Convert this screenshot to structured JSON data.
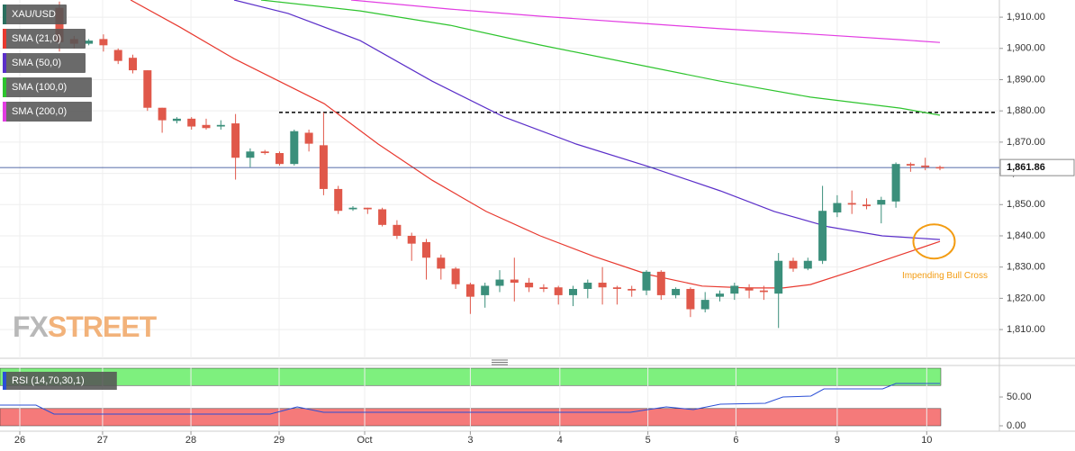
{
  "chart_data": {
    "type": "candlestick",
    "candles": {
      "name": "XAU/USD",
      "up_color": "#3b8f7b",
      "down_color": "#e0584a",
      "x": [
        0,
        1,
        2,
        3,
        4,
        5,
        6,
        7,
        8,
        9,
        10,
        11,
        12,
        13,
        14,
        15,
        16,
        17,
        18,
        19,
        20,
        21,
        22,
        23,
        24,
        25,
        26,
        27,
        28,
        29,
        30,
        31,
        32,
        33,
        34,
        35,
        36,
        37,
        38,
        39,
        40,
        41,
        42,
        43,
        44,
        45,
        46,
        47,
        48,
        49,
        50,
        51,
        52,
        53,
        54,
        55,
        56,
        57,
        58,
        59,
        60
      ],
      "open": [
        1913,
        1903,
        1901.5,
        1903,
        1899.5,
        1897,
        1893,
        1881,
        1876.8,
        1877.5,
        1875.5,
        1875,
        1876,
        1865,
        1867,
        1866.5,
        1863,
        1873,
        1869,
        1855,
        1848.5,
        1849,
        1848.5,
        1843.5,
        1840,
        1838,
        1833,
        1829.5,
        1824.5,
        1821,
        1824,
        1826,
        1825,
        1823.5,
        1823.5,
        1821,
        1823,
        1825,
        1823.5,
        1823,
        1822.5,
        1828.5,
        1821,
        1823,
        1816.5,
        1820.5,
        1821.5,
        1823.5,
        1822.5,
        1821.5,
        1832,
        1829.5,
        1832,
        1847.5,
        1850.5,
        1850,
        1850,
        1851,
        1863,
        1862.5,
        1862
      ],
      "high": [
        1915,
        1904,
        1903,
        1904.5,
        1900,
        1898,
        1893,
        1881,
        1878,
        1878,
        1877.5,
        1877,
        1879,
        1868,
        1867.5,
        1867,
        1874,
        1874,
        1879.5,
        1856,
        1849.5,
        1849,
        1849,
        1845,
        1841,
        1839,
        1834,
        1830,
        1825,
        1825,
        1829,
        1833,
        1826.5,
        1824.5,
        1824,
        1824,
        1826,
        1830,
        1824,
        1824,
        1829,
        1829,
        1823.5,
        1823.5,
        1822,
        1822.5,
        1825,
        1824.5,
        1824,
        1834.5,
        1833,
        1833,
        1856,
        1853,
        1854.5,
        1852,
        1852.5,
        1863.5,
        1863.5,
        1865,
        1862.5
      ],
      "low": [
        1899,
        1900,
        1901,
        1899,
        1895,
        1892,
        1880,
        1873,
        1876,
        1874,
        1874,
        1874,
        1858,
        1862,
        1866,
        1862.5,
        1862.5,
        1867,
        1853,
        1847,
        1848,
        1847,
        1843,
        1839,
        1832,
        1826,
        1826,
        1823,
        1815,
        1817,
        1822,
        1819,
        1822,
        1822,
        1818,
        1817.5,
        1820,
        1818,
        1818,
        1820.5,
        1821,
        1819.5,
        1820,
        1814,
        1815.5,
        1819,
        1819.5,
        1820,
        1819.5,
        1810.5,
        1828.5,
        1829,
        1831,
        1846,
        1847,
        1848.5,
        1844,
        1849,
        1860.5,
        1861,
        1861
      ],
      "close": [
        1902,
        1901.5,
        1902.5,
        1901,
        1896,
        1893,
        1881,
        1877,
        1877.5,
        1875,
        1874.5,
        1875.5,
        1865,
        1867,
        1866.5,
        1863,
        1873.5,
        1869.5,
        1855,
        1848,
        1849,
        1848.5,
        1843.5,
        1840,
        1837.5,
        1833,
        1829.5,
        1824.5,
        1820.5,
        1824,
        1826,
        1825,
        1823.5,
        1823,
        1821,
        1823,
        1825,
        1823.5,
        1823,
        1822.5,
        1828.5,
        1821,
        1823,
        1816.5,
        1819.5,
        1821.5,
        1824,
        1822.5,
        1822,
        1832,
        1829.5,
        1832,
        1848,
        1850.5,
        1850,
        1849.5,
        1851.5,
        1863,
        1862.5,
        1862,
        1861.86
      ]
    },
    "series": [
      {
        "name": "SMA (21,0)",
        "color": "#e8392f",
        "x": [
          4.85,
          8.22,
          11.9,
          14.97,
          18.04,
          21.72,
          25.4,
          29.08,
          32.76,
          36.44,
          40.12,
          43.8,
          46.87,
          49.3,
          51.17,
          54.23,
          57.3,
          60
        ],
        "values": [
          1915.5,
          1906.8,
          1896.7,
          1889.5,
          1882.3,
          1869.4,
          1857.8,
          1847.8,
          1840,
          1833.4,
          1827.6,
          1823.9,
          1823.3,
          1823.3,
          1824.4,
          1829,
          1833.9,
          1838.2
        ]
      },
      {
        "name": "SMA (50,0)",
        "color": "#5b2fc9",
        "x": [
          11.9,
          15.58,
          20.49,
          25.4,
          30.31,
          35.21,
          40.12,
          45.03,
          48.71,
          52.39,
          56.07,
          60
        ],
        "values": [
          1915.5,
          1911.2,
          1902.5,
          1889.5,
          1878,
          1869.4,
          1862.2,
          1854.4,
          1847.8,
          1842.9,
          1840,
          1838.8
        ]
      },
      {
        "name": "SMA (100,0)",
        "color": "#2ec42e",
        "x": [
          13.74,
          20.49,
          26.63,
          32.76,
          38.9,
          45.03,
          51.17,
          57.3,
          60
        ],
        "values": [
          1915.5,
          1912,
          1907.4,
          1901.1,
          1895.3,
          1889.5,
          1884.4,
          1880.9,
          1878.6
        ]
      },
      {
        "name": "SMA (200,0)",
        "color": "#e23de2",
        "x": [
          19.88,
          26.63,
          32.76,
          38.9,
          45.03,
          51.17,
          57.3,
          60
        ],
        "values": [
          1915.5,
          1912.6,
          1910.3,
          1908.3,
          1906.3,
          1904.6,
          1902.8,
          1901.9
        ]
      }
    ],
    "last_price": {
      "value": 1861.86,
      "label": "1,861.86",
      "color": "#1f3b8c"
    },
    "level_line": {
      "value": 1879.5,
      "x": [
        14.97,
        63.75
      ],
      "color": "#000000"
    },
    "annotation": {
      "text": "Impending Bull Cross",
      "x": 59.6,
      "y": 1838.2,
      "color": "#f39c12"
    },
    "watermark": [
      "FX",
      "STREET"
    ],
    "xlim": [
      -4.05,
      64.05
    ],
    "xticks": [
      {
        "value": -2.7,
        "label": "26"
      },
      {
        "value": 2.94,
        "label": "27"
      },
      {
        "value": 8.96,
        "label": "28"
      },
      {
        "value": 14.97,
        "label": "29"
      },
      {
        "value": 20.8,
        "label": "Oct"
      },
      {
        "value": 28.0,
        "label": "3"
      },
      {
        "value": 34.1,
        "label": "4"
      },
      {
        "value": 40.1,
        "label": "5"
      },
      {
        "value": 46.1,
        "label": "6"
      },
      {
        "value": 53.0,
        "label": "9"
      },
      {
        "value": 59.1,
        "label": "10"
      }
    ],
    "ylim": [
      1800.8,
      1915.5
    ],
    "yticks": [
      {
        "value": 1810,
        "label": "1,810.00"
      },
      {
        "value": 1820,
        "label": "1,820.00"
      },
      {
        "value": 1830,
        "label": "1,830.00"
      },
      {
        "value": 1840,
        "label": "1,840.00"
      },
      {
        "value": 1850,
        "label": "1,850.00"
      },
      {
        "value": 1860,
        "label": "1,860.00"
      },
      {
        "value": 1870,
        "label": "1,870.00"
      },
      {
        "value": 1880,
        "label": "1,880.00"
      },
      {
        "value": 1890,
        "label": "1,890.00"
      },
      {
        "value": 1900,
        "label": "1,900.00"
      },
      {
        "value": 1910,
        "label": "1,910.00"
      }
    ],
    "grid": true,
    "rsi": {
      "name": "RSI (14,70,30,1)",
      "color": "#2b4fd6",
      "x": [
        -4.05,
        -1.6,
        -0.37,
        2.7,
        14.36,
        16.2,
        18.0,
        38.9,
        40.1,
        41.35,
        43.2,
        45.03,
        48.1,
        49.3,
        51.2,
        52.1,
        56.1,
        57.0,
        60
      ],
      "values": [
        35.9,
        35.9,
        20.3,
        20.3,
        20.3,
        32.8,
        23.4,
        23.4,
        28.1,
        32.8,
        28.1,
        37.5,
        39.1,
        50,
        51.6,
        64.1,
        64.1,
        73.4,
        73.4
      ],
      "ylim": [
        -7.8,
        101.6
      ],
      "yticks": [
        {
          "value": 50,
          "label": "50.00"
        },
        {
          "value": 0,
          "label": "0.00"
        }
      ],
      "bands": [
        {
          "range": [
            70,
            100
          ],
          "color": "#7ef07e"
        },
        {
          "range": [
            0,
            30
          ],
          "color": "#f57a7a"
        }
      ]
    }
  }
}
